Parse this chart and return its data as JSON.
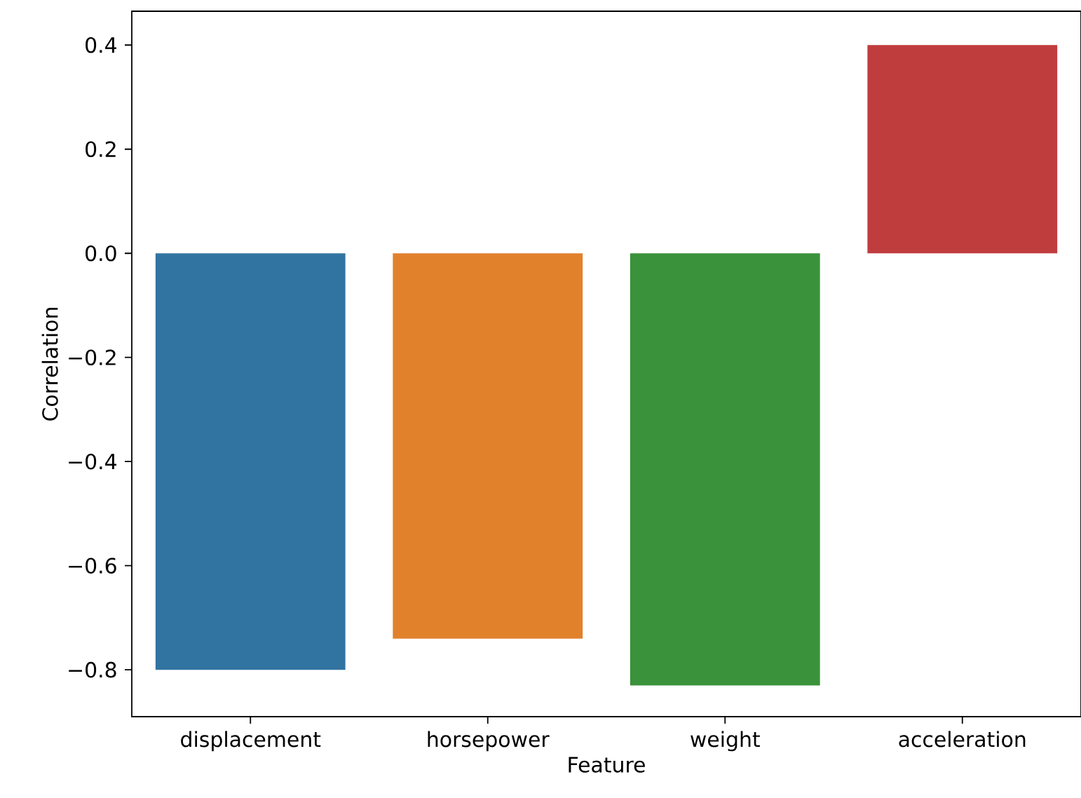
{
  "chart_data": {
    "type": "bar",
    "xlabel": "Feature",
    "ylabel": "Correlation",
    "categories": [
      "displacement",
      "horsepower",
      "weight",
      "acceleration"
    ],
    "values": [
      -0.8,
      -0.74,
      -0.83,
      0.4
    ],
    "colors": [
      "#3274a1",
      "#e1812c",
      "#3a923a",
      "#c03d3e"
    ],
    "ylim": [
      -0.89,
      0.465
    ],
    "yticks": [
      {
        "value": -0.8,
        "label": "−0.8"
      },
      {
        "value": -0.6,
        "label": "−0.6"
      },
      {
        "value": -0.4,
        "label": "−0.4"
      },
      {
        "value": -0.2,
        "label": "−0.2"
      },
      {
        "value": 0,
        "label": "0.0"
      },
      0.2,
      0.4
    ],
    "grid": false
  }
}
